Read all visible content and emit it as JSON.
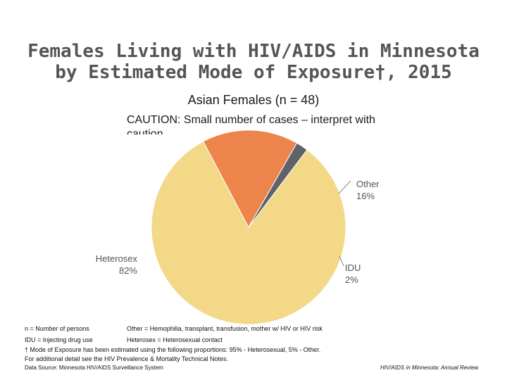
{
  "header": {
    "title_line1": "Females Living with HIV/AIDS in Minnesota",
    "title_line2": "by Estimated Mode of Exposure†, 2015",
    "subtitle": "Asian Females (n = 48)",
    "caution": "CAUTION: Small number of cases – interpret with caution"
  },
  "chart_data": {
    "type": "pie",
    "title": "Asian Females (n = 48)",
    "slices": [
      {
        "name": "Heterosex",
        "value": 82,
        "label": "Heterosex",
        "pct_label": "82%",
        "color": "#F2D887"
      },
      {
        "name": "Other",
        "value": 16,
        "label": "Other",
        "pct_label": "16%",
        "color": "#EC844B"
      },
      {
        "name": "IDU",
        "value": 2,
        "label": "IDU",
        "pct_label": "2%",
        "color": "#5F6368"
      }
    ]
  },
  "footer": {
    "n_def": "n = Number of persons",
    "other_def": "Other = Hemophilia, transplant, transfusion, mother w/ HIV or HIV risk",
    "idu_def": "IDU = Injecting drug use",
    "hetero_def": "Heterosex = Heterosexual contact",
    "dagger_note": "† Mode of Exposure has been estimated using the following proportions: 95% - Heterosexual, 5% - Other.",
    "detail_note": "For additional detail see the HIV Prevalence & Mortality Technical Notes.",
    "data_source": "Data Source: Minnesota HIV/AIDS Surveillance System",
    "report_title": "HIV/AIDS in Minnesota: Annual Review"
  }
}
